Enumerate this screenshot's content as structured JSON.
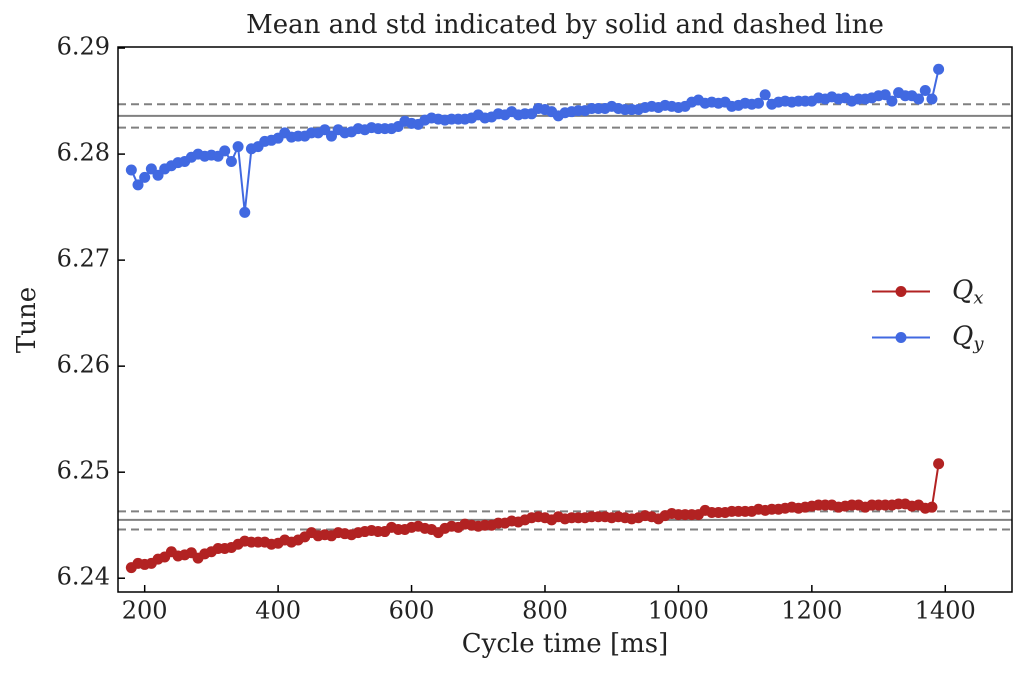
{
  "chart_data": {
    "type": "line",
    "title": "Mean and std indicated by solid and dashed line",
    "xlabel": "Cycle time [ms]",
    "ylabel": "Tune",
    "x": [
      180,
      190,
      200,
      210,
      220,
      230,
      240,
      250,
      260,
      270,
      280,
      290,
      300,
      310,
      320,
      330,
      340,
      350,
      360,
      370,
      380,
      390,
      400,
      410,
      420,
      430,
      440,
      450,
      460,
      470,
      480,
      490,
      500,
      510,
      520,
      530,
      540,
      550,
      560,
      570,
      580,
      590,
      600,
      610,
      620,
      630,
      640,
      650,
      660,
      670,
      680,
      690,
      700,
      710,
      720,
      730,
      740,
      750,
      760,
      770,
      780,
      790,
      800,
      810,
      820,
      830,
      840,
      850,
      860,
      870,
      880,
      890,
      900,
      910,
      920,
      930,
      940,
      950,
      960,
      970,
      980,
      990,
      1000,
      1010,
      1020,
      1030,
      1040,
      1050,
      1060,
      1070,
      1080,
      1090,
      1100,
      1110,
      1120,
      1130,
      1140,
      1150,
      1160,
      1170,
      1180,
      1190,
      1200,
      1210,
      1220,
      1230,
      1240,
      1250,
      1260,
      1270,
      1280,
      1290,
      1300,
      1310,
      1320,
      1330,
      1340,
      1350,
      1360,
      1370,
      1380,
      1390
    ],
    "series": [
      {
        "name": "Qx",
        "color": "#b22222",
        "values": [
          6.241,
          6.2414,
          6.2413,
          6.2414,
          6.2418,
          6.242,
          6.2425,
          6.2421,
          6.2422,
          6.2424,
          6.2419,
          6.2423,
          6.2425,
          6.2428,
          6.2428,
          6.2429,
          6.2432,
          6.2435,
          6.2434,
          6.2434,
          6.2434,
          6.2432,
          6.2433,
          6.2436,
          6.2434,
          6.2436,
          6.2439,
          6.2443,
          6.244,
          6.2441,
          6.244,
          6.2443,
          6.2442,
          6.2441,
          6.2443,
          6.2444,
          6.2445,
          6.2444,
          6.2444,
          6.2448,
          6.2446,
          6.2446,
          6.2448,
          6.2449,
          6.2447,
          6.2446,
          6.2443,
          6.2447,
          6.2449,
          6.2448,
          6.2451,
          6.245,
          6.2449,
          6.245,
          6.245,
          6.2452,
          6.2452,
          6.2454,
          6.2453,
          6.2455,
          6.2457,
          6.2458,
          6.2457,
          6.2455,
          6.2458,
          6.2456,
          6.2457,
          6.2457,
          6.2457,
          6.2458,
          6.2458,
          6.2458,
          6.2457,
          6.2458,
          6.2457,
          6.2456,
          6.2457,
          6.2459,
          6.2458,
          6.2456,
          6.2459,
          6.2461,
          6.246,
          6.246,
          6.246,
          6.246,
          6.2464,
          6.2462,
          6.2462,
          6.2462,
          6.2463,
          6.2463,
          6.2463,
          6.2463,
          6.2465,
          6.2464,
          6.2465,
          6.2465,
          6.2466,
          6.2467,
          6.2466,
          6.2467,
          6.2468,
          6.2469,
          6.2469,
          6.2469,
          6.2467,
          6.2468,
          6.2469,
          6.2469,
          6.2467,
          6.2469,
          6.2469,
          6.2469,
          6.2469,
          6.247,
          6.247,
          6.2468,
          6.2469,
          6.2466,
          6.2467,
          6.2508
        ]
      },
      {
        "name": "Qy",
        "color": "#4169e1",
        "values": [
          6.2785,
          6.2771,
          6.2778,
          6.2786,
          6.278,
          6.2786,
          6.2789,
          6.2792,
          6.2793,
          6.2797,
          6.28,
          6.2798,
          6.2799,
          6.2798,
          6.2803,
          6.2793,
          6.2807,
          6.2745,
          6.2805,
          6.2807,
          6.2812,
          6.2813,
          6.2815,
          6.282,
          6.2816,
          6.2817,
          6.2817,
          6.282,
          6.282,
          6.2823,
          6.2817,
          6.2823,
          6.282,
          6.2821,
          6.2824,
          6.2823,
          6.2825,
          6.2824,
          6.2824,
          6.2824,
          6.2826,
          6.2831,
          6.2829,
          6.2828,
          6.2832,
          6.2834,
          6.2833,
          6.2832,
          6.2833,
          6.2833,
          6.2833,
          6.2834,
          6.2837,
          6.2834,
          6.2835,
          6.2838,
          6.2837,
          6.284,
          6.2837,
          6.2838,
          6.2838,
          6.2843,
          6.2842,
          6.284,
          6.2836,
          6.2839,
          6.284,
          6.2841,
          6.2841,
          6.2843,
          6.2843,
          6.2843,
          6.2845,
          6.2843,
          6.2842,
          6.2842,
          6.2842,
          6.2844,
          6.2845,
          6.2844,
          6.2846,
          6.2845,
          6.2844,
          6.2845,
          6.2849,
          6.2851,
          6.2848,
          6.2849,
          6.2848,
          6.2849,
          6.2845,
          6.2846,
          6.2848,
          6.2847,
          6.2848,
          6.2856,
          6.2847,
          6.2849,
          6.285,
          6.2849,
          6.285,
          6.285,
          6.285,
          6.2853,
          6.2852,
          6.2854,
          6.2852,
          6.2853,
          6.285,
          6.2852,
          6.2852,
          6.2853,
          6.2855,
          6.2856,
          6.285,
          6.2858,
          6.2855,
          6.2855,
          6.2852,
          6.286,
          6.2852,
          6.288
        ]
      }
    ],
    "reference_lines": [
      {
        "value": 6.2836,
        "style": "solid"
      },
      {
        "value": 6.2847,
        "style": "dashed"
      },
      {
        "value": 6.2825,
        "style": "dashed"
      },
      {
        "value": 6.2455,
        "style": "solid"
      },
      {
        "value": 6.2463,
        "style": "dashed"
      },
      {
        "value": 6.2446,
        "style": "dashed"
      }
    ],
    "reference_color": "#808080",
    "xlim": [
      160,
      1500
    ],
    "ylim": [
      6.2387,
      6.2901
    ],
    "xticks": [
      200,
      400,
      600,
      800,
      1000,
      1200,
      1400
    ],
    "yticks": [
      6.24,
      6.25,
      6.26,
      6.27,
      6.28,
      6.29
    ],
    "legend": "center right",
    "grid": false
  }
}
